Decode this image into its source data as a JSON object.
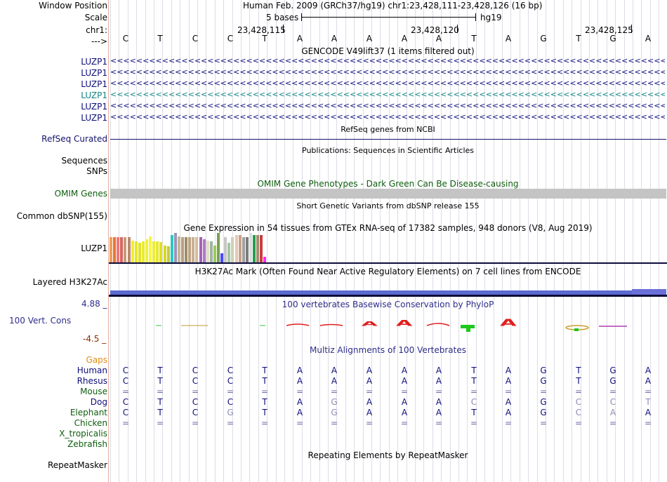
{
  "header": {
    "window_position_label": "Window Position",
    "window_position": "Human Feb. 2009 (GRCh37/hg19)   chr1:23,428,111-23,428,126 (16 bp)",
    "scale_label": "Scale",
    "scale_text": "5 bases",
    "assembly": "hg19",
    "chrom_label": "chr1:",
    "strand_label": "--->",
    "positions": [
      "23,428,115",
      "23,428,120",
      "23,428,125"
    ]
  },
  "bases": [
    "C",
    "T",
    "C",
    "C",
    "T",
    "A",
    "A",
    "A",
    "A",
    "A",
    "T",
    "A",
    "G",
    "T",
    "G",
    "A"
  ],
  "gencode": {
    "title": "GENCODE V49lift37 (1 items filtered out)",
    "transcripts": [
      {
        "label": "LUZP1",
        "color": "#0d0d7a"
      },
      {
        "label": "LUZP1",
        "color": "#0d0d7a"
      },
      {
        "label": "LUZP1",
        "color": "#0d0d7a"
      },
      {
        "label": "LUZP1",
        "color": "#138484"
      },
      {
        "label": "LUZP1",
        "color": "#0d0d7a"
      },
      {
        "label": "LUZP1",
        "color": "#0d0d7a"
      }
    ]
  },
  "refseq": {
    "label": "RefSeq Curated",
    "title": "RefSeq genes from NCBI",
    "color": "#12126b"
  },
  "pubs": {
    "title": "Publications: Sequences in Scientific Articles",
    "label1": "Sequences",
    "label2": "SNPs"
  },
  "omim": {
    "title": "OMIM Gene Phenotypes - Dark Green Can Be Disease-causing",
    "label": "OMIM Genes",
    "color": "#0e5e0e"
  },
  "dbsnp": {
    "title": "Short Genetic Variants from dbSNP release 155",
    "label": "Common dbSNP(155)"
  },
  "gtex": {
    "title": "Gene Expression in 54 tissues from GTEx RNA-seq of 17382 samples, 948 donors (V8, Aug 2019)",
    "label": "LUZP1",
    "colors": [
      "#f0a058",
      "#e07838",
      "#f07878",
      "#d86464",
      "#c89a78",
      "#b8896c",
      "#f0f028",
      "#e6e62a",
      "#e0e030",
      "#eaea30",
      "#f0f040",
      "#f6f648",
      "#ecec3a",
      "#e8e830",
      "#e0e028",
      "#d8d820",
      "#c8c842",
      "#28c8c8",
      "#9696b4",
      "#c8b496",
      "#b4a082",
      "#a08c6e",
      "#bca482",
      "#c8b092",
      "#d4bca2",
      "#a064b4",
      "#b478c8",
      "#e0e0c8",
      "#a0b4a0",
      "#9cc85a",
      "#78a050",
      "#4a4aff",
      "#c8c8c8",
      "#a0c8a0",
      "#d0d0b4",
      "#e6c8b4",
      "#c8a088",
      "#a0a0a0",
      "#7c7c7c",
      "#dcdcdc",
      "#20a050",
      "#a08c6e",
      "#c83c3c",
      "#ff28ff"
    ],
    "values": [
      0.85,
      0.85,
      0.85,
      0.85,
      0.85,
      0.85,
      0.75,
      0.72,
      0.66,
      0.72,
      0.78,
      0.88,
      0.72,
      0.72,
      0.68,
      0.58,
      0.55,
      0.92,
      1.0,
      0.88,
      0.85,
      0.85,
      0.85,
      0.85,
      0.85,
      0.85,
      0.78,
      0.75,
      0.72,
      0.58,
      1.0,
      0.32,
      0.85,
      0.66,
      0.85,
      0.92,
      0.92,
      0.85,
      0.85,
      1.0,
      0.92,
      0.92,
      0.92,
      0.18
    ]
  },
  "h3k27ac": {
    "title": "H3K27Ac Mark (Often Found Near Active Regulatory Elements) on 7 cell lines from ENCODE",
    "label": "Layered H3K27Ac"
  },
  "phylop": {
    "title": "100 vertebrates Basewise Conservation by PhyloP",
    "label": "100 Vert. Cons",
    "max": "4.88 _",
    "min": "-4.5 _",
    "color": "#2e2e8a",
    "min_color": "#8b2a00"
  },
  "multiz": {
    "title": "Multiz Alignments of 100 Vertebrates",
    "gaps_label": "Gaps",
    "species": [
      {
        "name": "Human",
        "color": "#0d0d7a",
        "seq": [
          "C",
          "T",
          "C",
          "C",
          "T",
          "A",
          "A",
          "A",
          "A",
          "A",
          "T",
          "A",
          "G",
          "T",
          "G",
          "A"
        ]
      },
      {
        "name": "Rhesus",
        "color": "#0d0d7a",
        "seq": [
          "C",
          "T",
          "C",
          "C",
          "T",
          "A",
          "A",
          "A",
          "A",
          "A",
          "T",
          "A",
          "G",
          "T",
          "G",
          "A"
        ]
      },
      {
        "name": "Mouse",
        "color": "#0e5e0e",
        "seq": [
          "=",
          "=",
          "=",
          "=",
          "=",
          "=",
          "=",
          "=",
          "=",
          "=",
          "=",
          "=",
          "=",
          "=",
          "=",
          "="
        ]
      },
      {
        "name": "Dog",
        "color": "#0d0d7a",
        "seq": [
          "C",
          "T",
          "C",
          "C",
          "T",
          "A",
          "G",
          "A",
          "A",
          "A",
          "C",
          "A",
          "G",
          "C",
          "C",
          "T"
        ]
      },
      {
        "name": "Elephant",
        "color": "#0e5e0e",
        "seq": [
          "C",
          "T",
          "C",
          "G",
          "T",
          "A",
          "G",
          "A",
          "A",
          "A",
          "T",
          "A",
          "G",
          "C",
          "A",
          "A"
        ]
      },
      {
        "name": "Chicken",
        "color": "#0e5e0e",
        "seq": [
          "=",
          "=",
          "=",
          "=",
          "=",
          "=",
          "=",
          "=",
          "=",
          "=",
          "=",
          "=",
          "=",
          "=",
          "=",
          "="
        ]
      },
      {
        "name": "X_tropicalis",
        "color": "#0e5e0e",
        "seq": []
      },
      {
        "name": "Zebrafish",
        "color": "#0e5e0e",
        "seq": []
      }
    ]
  },
  "repeatmasker": {
    "title": "Repeating Elements by RepeatMasker",
    "label": "RepeatMasker"
  }
}
